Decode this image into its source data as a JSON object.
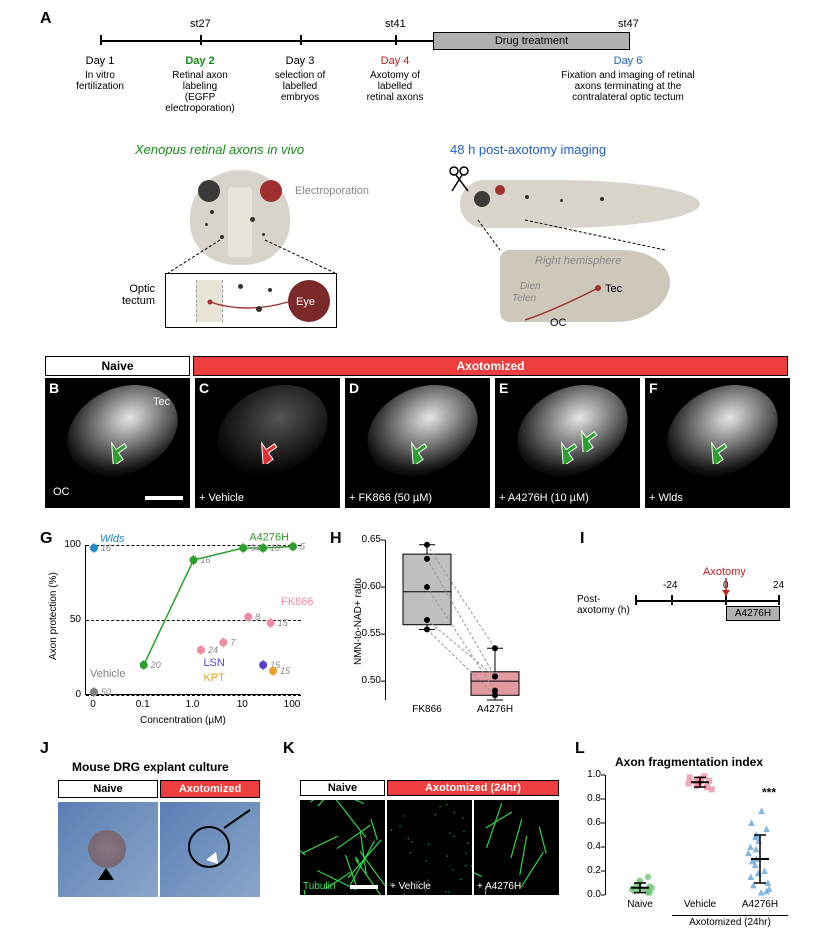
{
  "panelLetters": {
    "A": "A",
    "B": "B",
    "C": "C",
    "D": "D",
    "E": "E",
    "F": "F",
    "G": "G",
    "H": "H",
    "I": "I",
    "J": "J",
    "K": "K",
    "L": "L"
  },
  "timeline": {
    "stages": {
      "st27": "st27",
      "st41": "st41",
      "st47": "st47"
    },
    "drug_label": "Drug treatment",
    "days": [
      {
        "top": "Day 1",
        "sub": "In vitro\nfertilization",
        "color": "#000000"
      },
      {
        "top": "Day 2",
        "sub": "Retinal axon\nlabeling\n(EGFP\nelectroporation)",
        "color": "#178a17",
        "bold": true
      },
      {
        "top": "Day 3",
        "sub": "selection of\nlabelled\nembryos",
        "color": "#000000"
      },
      {
        "top": "Day 4",
        "sub": "Axotomy of\nlabelled\nretinal axons",
        "color": "#b82020"
      },
      {
        "top": "Day 6",
        "sub": "Fixation and imaging of retinal\naxons terminating at the\ncontralateral optic tectum",
        "color": "#2060c0"
      }
    ],
    "xenopus_title": "Xenopus retinal axons in vivo",
    "xenopus_title_color": "#178a17",
    "axotomy_title": "48 h post-axotomy imaging",
    "axotomy_title_color": "#2060c0",
    "electroporation": "Electroporation",
    "optic_tectum": "Optic\ntectum",
    "eye": "Eye",
    "right_hemi": "Right hemisphere",
    "dien": "Dien",
    "telen": "Telen",
    "tec": "Tec",
    "oc": "OC"
  },
  "micrographs": {
    "naive_header": "Naive",
    "axotomized_header": "Axotomized",
    "naive_bg": "#ffffff",
    "axotomized_bg": "#ef3e3e",
    "labels": {
      "tec": "Tec",
      "oc": "OC",
      "vehicle": "+ Vehicle",
      "fk866": "+ FK866 (50 µM)",
      "a4276h": "+ A4276H (10 µM)",
      "wlds": "+ Wlds"
    }
  },
  "chartG": {
    "xlabel": "Concentration (µM)",
    "ylabel": "Axon protection (%)",
    "xticks": [
      "0",
      "0.1",
      "1.0",
      "10",
      "100"
    ],
    "yticks": [
      "0",
      "50",
      "100"
    ],
    "series": {
      "Wlds": {
        "color": "#2389c9",
        "points": [
          {
            "x_idx": 0,
            "y": 98,
            "n": "16"
          }
        ]
      },
      "A4276H": {
        "color": "#2ca02c",
        "points": [
          {
            "x_idx": 1,
            "y": 20,
            "n": "20"
          },
          {
            "x_idx": 2,
            "y": 90,
            "n": "16"
          },
          {
            "x_idx": 3,
            "y": 98,
            "n": "34"
          },
          {
            "x_idx": 3.4,
            "y": 98,
            "n": "18"
          },
          {
            "x_idx": 4,
            "y": 99,
            "n": "5"
          }
        ],
        "draw_line": true
      },
      "FK866": {
        "color": "#f08aa0",
        "points": [
          {
            "x_idx": 2.15,
            "y": 30,
            "n": "24"
          },
          {
            "x_idx": 2.6,
            "y": 35,
            "n": "7"
          },
          {
            "x_idx": 3.1,
            "y": 52,
            "n": "8"
          },
          {
            "x_idx": 3.55,
            "y": 48,
            "n": "15"
          }
        ]
      },
      "Vehicle": {
        "color": "#808080",
        "points": [
          {
            "x_idx": 0,
            "y": 2,
            "n": "50"
          }
        ]
      },
      "LSN": {
        "color": "#5a3fd4",
        "points": [
          {
            "x_idx": 3.4,
            "y": 20,
            "n": "15"
          }
        ]
      },
      "KPT": {
        "color": "#e8a030",
        "points": [
          {
            "x_idx": 3.6,
            "y": 16,
            "n": "15"
          }
        ]
      }
    },
    "legend_labels": {
      "Wlds": "Wlds",
      "A4276H": "A4276H",
      "FK866": "FK866",
      "Vehicle": "Vehicle",
      "LSN": "LSN",
      "KPT": "KPT"
    }
  },
  "chartH": {
    "ylabel": "NMN-to-NAD+ ratio",
    "yticks": [
      "0.50",
      "0.55",
      "0.60",
      "0.65"
    ],
    "ymin": 0.48,
    "ymax": 0.65,
    "categories": [
      "FK866",
      "A4276H"
    ],
    "boxes": [
      {
        "fill": "#bfbfbf",
        "q1": 0.56,
        "med": 0.595,
        "q3": 0.635,
        "lo": 0.555,
        "hi": 0.645
      },
      {
        "fill": "#e09aa0",
        "q1": 0.485,
        "med": 0.5,
        "q3": 0.51,
        "lo": 0.48,
        "hi": 0.535
      }
    ],
    "pairs": [
      [
        0.645,
        0.535
      ],
      [
        0.63,
        0.505
      ],
      [
        0.565,
        0.505
      ],
      [
        0.555,
        0.485
      ],
      [
        0.6,
        0.49
      ]
    ]
  },
  "panelI": {
    "label": "Post-\naxotomy (h)",
    "ticks": [
      "-24",
      "0",
      "24"
    ],
    "axotomy": "Axotomy",
    "drug": "A4276H"
  },
  "panelJ": {
    "title": "Mouse DRG explant culture",
    "naive": "Naive",
    "axotomized": "Axotomized",
    "naive_bg": "#ffffff",
    "ax_bg": "#ef3e3e"
  },
  "panelK": {
    "naive": "Naive",
    "axotomized": "Axotomized (24hr)",
    "tubulin": "Tubulin",
    "vehicle": "+ Vehicle",
    "a4276h": "+ A4276H",
    "tubulin_color": "#3aea58"
  },
  "panelL": {
    "title": "Axon fragmentation index",
    "yticks": [
      "0.0",
      "0.2",
      "0.4",
      "0.6",
      "0.8",
      "1.0"
    ],
    "groups": [
      "Naive",
      "Vehicle",
      "A4276H"
    ],
    "sub_bracket": "Axotomized (24hr)",
    "sig": "***",
    "colors": {
      "Naive": "#6fc276",
      "Vehicle": "#f08aa0",
      "A4276H": "#5fa0d8"
    },
    "data": {
      "Naive": [
        0.02,
        0.05,
        0.04,
        0.06,
        0.1,
        0.03,
        0.07,
        0.12,
        0.15,
        0.05,
        0.02,
        0.08
      ],
      "Vehicle": [
        0.95,
        0.92,
        0.98,
        0.94,
        0.97,
        0.9,
        0.93,
        0.96,
        0.88,
        0.99,
        0.91,
        0.95
      ],
      "A4276H": [
        0.45,
        0.05,
        0.08,
        0.15,
        0.3,
        0.25,
        0.6,
        0.4,
        0.55,
        0.2,
        0.35,
        0.1,
        0.5,
        0.7,
        0.28,
        0.38,
        0.02,
        0.03,
        0.48,
        0.18
      ]
    },
    "means": {
      "Naive": 0.06,
      "Vehicle": 0.94,
      "A4276H": 0.3
    },
    "err": {
      "Naive": 0.04,
      "Vehicle": 0.04,
      "A4276H": 0.2
    }
  },
  "colors": {
    "green": "#2ca02c",
    "red": "#e03030"
  }
}
